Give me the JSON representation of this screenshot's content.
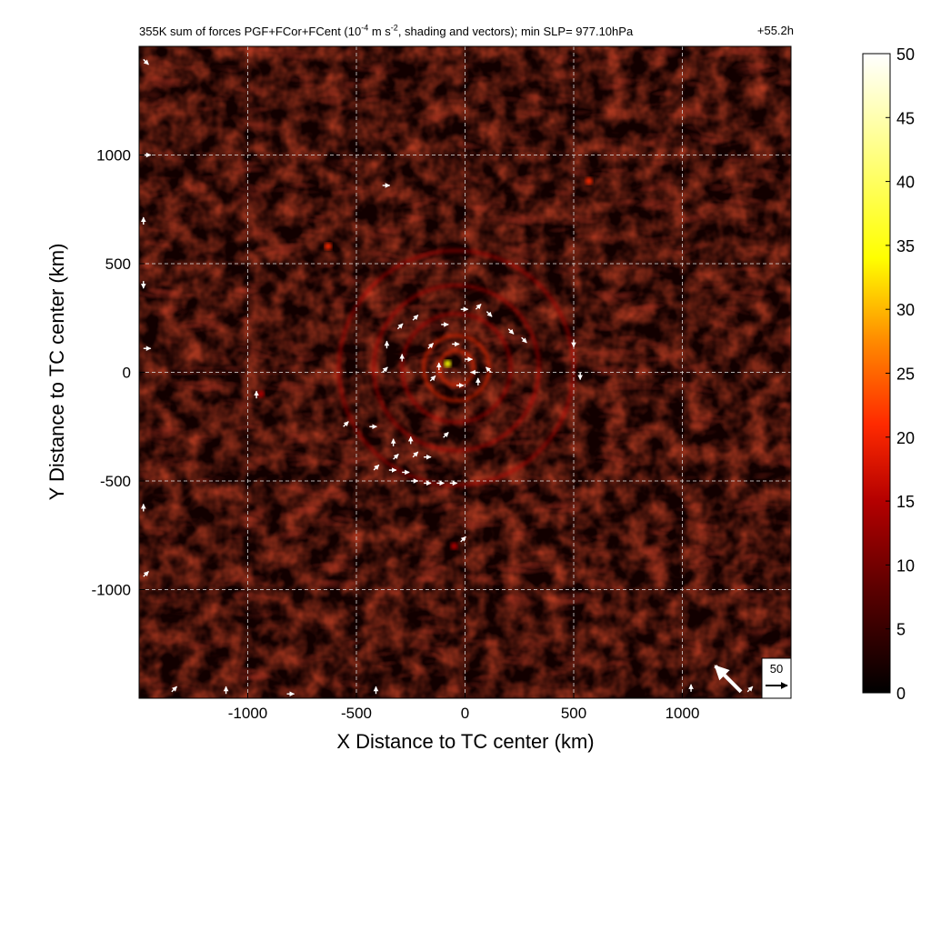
{
  "chart_data": {
    "type": "heatmap",
    "title": {
      "prefix": "355K sum of forces PGF+FCor+FCent (10",
      "exp1": "-4",
      "mid": " m s",
      "exp2": "-2",
      "suffix": ", shading and vectors); min SLP= 977.10hPa",
      "right": "+55.2h"
    },
    "xlabel": "X Distance to TC center (km)",
    "ylabel": "Y Distance to TC center (km)",
    "xlim": [
      -1500,
      1500
    ],
    "ylim": [
      -1500,
      1500
    ],
    "xticks": [
      -1000,
      -500,
      0,
      500,
      1000
    ],
    "yticks": [
      -1000,
      -500,
      0,
      500,
      1000
    ],
    "xtick_labels": [
      "-1000",
      "-500",
      "0",
      "500",
      "1000"
    ],
    "ytick_labels": [
      "-1000",
      "-500",
      "0",
      "500",
      "1000"
    ],
    "grid": true,
    "colorbar": {
      "range": [
        0,
        50
      ],
      "ticks": [
        0,
        5,
        10,
        15,
        20,
        25,
        30,
        35,
        40,
        45,
        50
      ],
      "tick_labels": [
        "0",
        "5",
        "10",
        "15",
        "20",
        "25",
        "30",
        "35",
        "40",
        "45",
        "50"
      ],
      "colormap": "hot",
      "stops": [
        "#000000",
        "#5a0000",
        "#b40000",
        "#ff2a00",
        "#ff8a00",
        "#ffff00",
        "#ffffff"
      ]
    },
    "reference_vector": {
      "label": "50",
      "magnitude": 50
    },
    "rings": [
      {
        "radius": 540,
        "intensity": 12
      },
      {
        "radius": 380,
        "intensity": 11
      },
      {
        "radius": 250,
        "intensity": 13
      },
      {
        "radius": 150,
        "intensity": 14
      },
      {
        "radius": 80,
        "intensity": 16
      }
    ],
    "hotspots": [
      {
        "x": -80,
        "y": 40,
        "value": 28
      },
      {
        "x": 570,
        "y": 880,
        "value": 14
      },
      {
        "x": -630,
        "y": 580,
        "value": 14
      },
      {
        "x": -50,
        "y": -800,
        "value": 12
      },
      {
        "x": -940,
        "y": -100,
        "value": 11
      }
    ],
    "vectors": [
      {
        "x": -310,
        "y": 200,
        "u": 1,
        "v": 1
      },
      {
        "x": -240,
        "y": 240,
        "u": 1,
        "v": 1
      },
      {
        "x": -110,
        "y": 220,
        "u": 1,
        "v": 0
      },
      {
        "x": -20,
        "y": 290,
        "u": 1,
        "v": 0
      },
      {
        "x": 50,
        "y": 290,
        "u": 1,
        "v": 1
      },
      {
        "x": 100,
        "y": 280,
        "u": 1,
        "v": -1
      },
      {
        "x": 200,
        "y": 200,
        "u": 1,
        "v": -1
      },
      {
        "x": 260,
        "y": 160,
        "u": 1,
        "v": -1
      },
      {
        "x": -360,
        "y": 110,
        "u": 0,
        "v": 1
      },
      {
        "x": -170,
        "y": 110,
        "u": 1,
        "v": 1
      },
      {
        "x": -60,
        "y": 130,
        "u": 1,
        "v": 0
      },
      {
        "x": 0,
        "y": 60,
        "u": 1,
        "v": 0
      },
      {
        "x": 60,
        "y": 0,
        "u": -1,
        "v": 0
      },
      {
        "x": 120,
        "y": 0,
        "u": -1,
        "v": 1
      },
      {
        "x": -120,
        "y": 10,
        "u": 0,
        "v": 1
      },
      {
        "x": -160,
        "y": -40,
        "u": 1,
        "v": 1
      },
      {
        "x": -40,
        "y": -60,
        "u": 1,
        "v": 0
      },
      {
        "x": 60,
        "y": -60,
        "u": 0,
        "v": 1
      },
      {
        "x": 500,
        "y": 150,
        "u": 0,
        "v": -1
      },
      {
        "x": 530,
        "y": 0,
        "u": 0,
        "v": -1
      },
      {
        "x": -380,
        "y": 0,
        "u": 1,
        "v": 1
      },
      {
        "x": -290,
        "y": 50,
        "u": 0,
        "v": 1
      },
      {
        "x": -560,
        "y": -250,
        "u": 1,
        "v": 1
      },
      {
        "x": -440,
        "y": -250,
        "u": 1,
        "v": 0
      },
      {
        "x": -330,
        "y": -340,
        "u": 0,
        "v": 1
      },
      {
        "x": -250,
        "y": -330,
        "u": 0,
        "v": 1
      },
      {
        "x": -330,
        "y": -400,
        "u": 1,
        "v": 1
      },
      {
        "x": -240,
        "y": -390,
        "u": 1,
        "v": 1
      },
      {
        "x": -190,
        "y": -390,
        "u": 1,
        "v": 0
      },
      {
        "x": -420,
        "y": -450,
        "u": 1,
        "v": 1
      },
      {
        "x": -350,
        "y": -450,
        "u": 1,
        "v": 0
      },
      {
        "x": -290,
        "y": -460,
        "u": 1,
        "v": 0
      },
      {
        "x": -250,
        "y": -500,
        "u": 1,
        "v": 0
      },
      {
        "x": -190,
        "y": -510,
        "u": 1,
        "v": 0
      },
      {
        "x": -130,
        "y": -510,
        "u": 1,
        "v": 0
      },
      {
        "x": -70,
        "y": -510,
        "u": 1,
        "v": 0
      },
      {
        "x": -100,
        "y": -300,
        "u": 1,
        "v": 1
      },
      {
        "x": -20,
        "y": -780,
        "u": 1,
        "v": 1
      },
      {
        "x": -960,
        "y": -120,
        "u": 0,
        "v": 1
      },
      {
        "x": -380,
        "y": 860,
        "u": 1,
        "v": 0
      },
      {
        "x": -1480,
        "y": 1440,
        "u": 1,
        "v": -1
      },
      {
        "x": -1480,
        "y": 1000,
        "u": 1,
        "v": 0
      },
      {
        "x": -1480,
        "y": 680,
        "u": 0,
        "v": 1
      },
      {
        "x": -1480,
        "y": 420,
        "u": 0,
        "v": -1
      },
      {
        "x": -1480,
        "y": 110,
        "u": 1,
        "v": 0
      },
      {
        "x": -1480,
        "y": -640,
        "u": 0,
        "v": 1
      },
      {
        "x": -1480,
        "y": -940,
        "u": 1,
        "v": 1
      },
      {
        "x": -1350,
        "y": -1470,
        "u": 1,
        "v": 1
      },
      {
        "x": -1100,
        "y": -1480,
        "u": 0,
        "v": 1
      },
      {
        "x": -820,
        "y": -1480,
        "u": 1,
        "v": 0
      },
      {
        "x": -410,
        "y": -1480,
        "u": 0,
        "v": 1
      },
      {
        "x": 1040,
        "y": -1470,
        "u": 0,
        "v": 1
      },
      {
        "x": 1300,
        "y": -1470,
        "u": 1,
        "v": 1
      }
    ],
    "big_vector": {
      "x": 1270,
      "y": -1470,
      "u": -1,
      "v": 1
    }
  }
}
